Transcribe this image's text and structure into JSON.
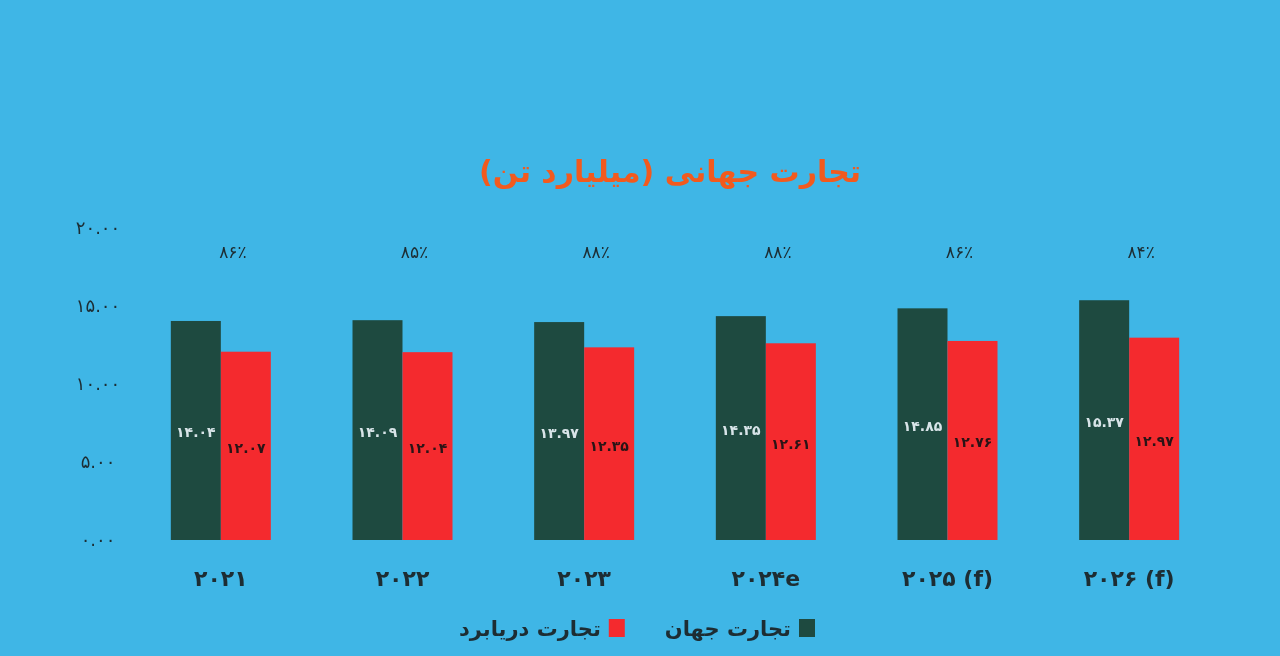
{
  "chart_data": {
    "type": "bar",
    "title": "تجارت جهانی (میلیارد تن)",
    "categories": [
      "۲۰۲۱",
      "۲۰۲۲",
      "۲۰۲۳",
      "۲۰۲۴e",
      "۲۰۲۵ (f)",
      "۲۰۲۶ (f)"
    ],
    "series": [
      {
        "name": "تجارت جهان",
        "color": "#1e4a40",
        "values": [
          14.04,
          14.09,
          13.97,
          14.35,
          14.85,
          15.37
        ],
        "value_labels": [
          "۱۴.۰۴",
          "۱۴.۰۹",
          "۱۳.۹۷",
          "۱۴.۳۵",
          "۱۴.۸۵",
          "۱۵.۳۷"
        ]
      },
      {
        "name": "تجارت دریابرد",
        "color": "#f42a2e",
        "values": [
          12.07,
          12.04,
          12.35,
          12.61,
          12.76,
          12.97
        ],
        "value_labels": [
          "۱۲.۰۷",
          "۱۲.۰۴",
          "۱۲.۳۵",
          "۱۲.۶۱",
          "۱۲.۷۶",
          "۱۲.۹۷"
        ]
      }
    ],
    "ylim": [
      0,
      20
    ],
    "yticks": [
      {
        "value": 0,
        "label": "۰.۰۰"
      },
      {
        "value": 5,
        "label": "۵.۰۰"
      },
      {
        "value": 10,
        "label": "۱۰.۰۰"
      },
      {
        "value": 15,
        "label": "۱۵.۰۰"
      },
      {
        "value": 20,
        "label": "۲۰.۰۰"
      }
    ],
    "annotations": [
      "۸۶٪",
      "۸۵٪",
      "۸۸٪",
      "۸۸٪",
      "۸۶٪",
      "۸۴٪"
    ],
    "legend": "bottom",
    "grid": false
  }
}
